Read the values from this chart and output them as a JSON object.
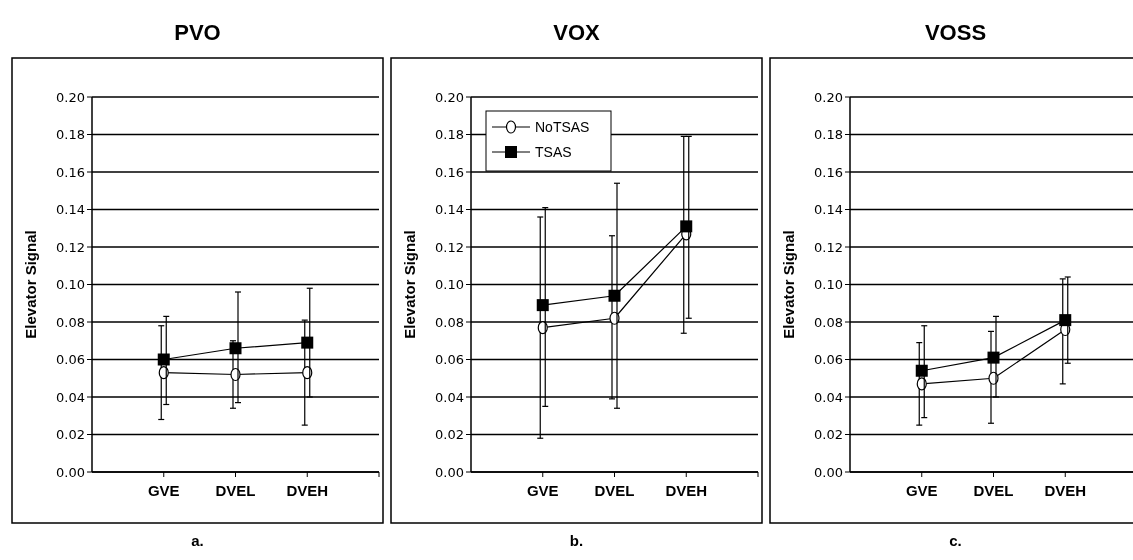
{
  "chart_data": [
    {
      "type": "line",
      "title": "PVO",
      "ylabel": "Elevator Signal",
      "categories": [
        "GVE",
        "DVEL",
        "DVEH"
      ],
      "ylim": [
        0,
        0.2
      ],
      "yticks": [
        {
          "value": 0,
          "label": "0.00"
        },
        0.02,
        0.04,
        0.06,
        0.08,
        {
          "value": 0.1,
          "label": "0.10"
        },
        0.12,
        0.14,
        0.16,
        0.18,
        {
          "value": 0.2,
          "label": "0.20"
        }
      ],
      "grid": "y",
      "annotations": [
        "a."
      ],
      "series": [
        {
          "color": "#000000",
          "marker": "circle",
          "values": [
            0.053,
            0.052,
            0.053
          ],
          "errors": [
            [
              0.028,
              0.078
            ],
            [
              0.034,
              0.07
            ],
            [
              0.025,
              0.081
            ]
          ]
        },
        {
          "color": "#000000",
          "marker": "square",
          "values": [
            0.06,
            0.066,
            0.069
          ],
          "errors": [
            [
              0.036,
              0.083
            ],
            [
              0.037,
              0.096
            ],
            [
              0.04,
              0.098
            ]
          ]
        }
      ]
    },
    {
      "type": "line",
      "title": "VOX",
      "ylabel": "Elevator Signal",
      "categories": [
        "GVE",
        "DVEL",
        "DVEH"
      ],
      "ylim": [
        0,
        0.2
      ],
      "yticks": [
        {
          "value": 0,
          "label": "0.00"
        },
        0.02,
        0.04,
        0.06,
        0.08,
        {
          "value": 0.1,
          "label": "0.10"
        },
        0.12,
        0.14,
        0.16,
        0.18,
        {
          "value": 0.2,
          "label": "0.20"
        }
      ],
      "grid": "y",
      "legend": "top left",
      "annotations": [
        "b."
      ],
      "series": [
        {
          "name": "NoTSAS",
          "color": "#000000",
          "marker": "circle",
          "values": [
            0.077,
            0.082,
            0.127
          ],
          "errors": [
            [
              0.018,
              0.136
            ],
            [
              0.039,
              0.126
            ],
            [
              0.074,
              0.179
            ]
          ]
        },
        {
          "name": "TSAS",
          "color": "#000000",
          "marker": "square",
          "values": [
            0.089,
            0.094,
            0.131
          ],
          "errors": [
            [
              0.035,
              0.141
            ],
            [
              0.034,
              0.154
            ],
            [
              0.082,
              0.179
            ]
          ]
        }
      ]
    },
    {
      "type": "line",
      "title": "VOSS",
      "ylabel": "Elevator Signal",
      "categories": [
        "GVE",
        "DVEL",
        "DVEH"
      ],
      "ylim": [
        0,
        0.2
      ],
      "yticks": [
        {
          "value": 0,
          "label": "0.00"
        },
        0.02,
        0.04,
        0.06,
        0.08,
        {
          "value": 0.1,
          "label": "0.10"
        },
        0.12,
        0.14,
        0.16,
        0.18,
        {
          "value": 0.2,
          "label": "0.20"
        }
      ],
      "grid": "y",
      "annotations": [
        "c."
      ],
      "series": [
        {
          "color": "#000000",
          "marker": "circle",
          "values": [
            0.047,
            0.05,
            0.076
          ],
          "errors": [
            [
              0.025,
              0.069
            ],
            [
              0.026,
              0.075
            ],
            [
              0.047,
              0.103
            ]
          ]
        },
        {
          "color": "#000000",
          "marker": "square",
          "values": [
            0.054,
            0.061,
            0.081
          ],
          "errors": [
            [
              0.029,
              0.078
            ],
            [
              0.04,
              0.083
            ],
            [
              0.058,
              0.104
            ]
          ]
        }
      ]
    }
  ]
}
